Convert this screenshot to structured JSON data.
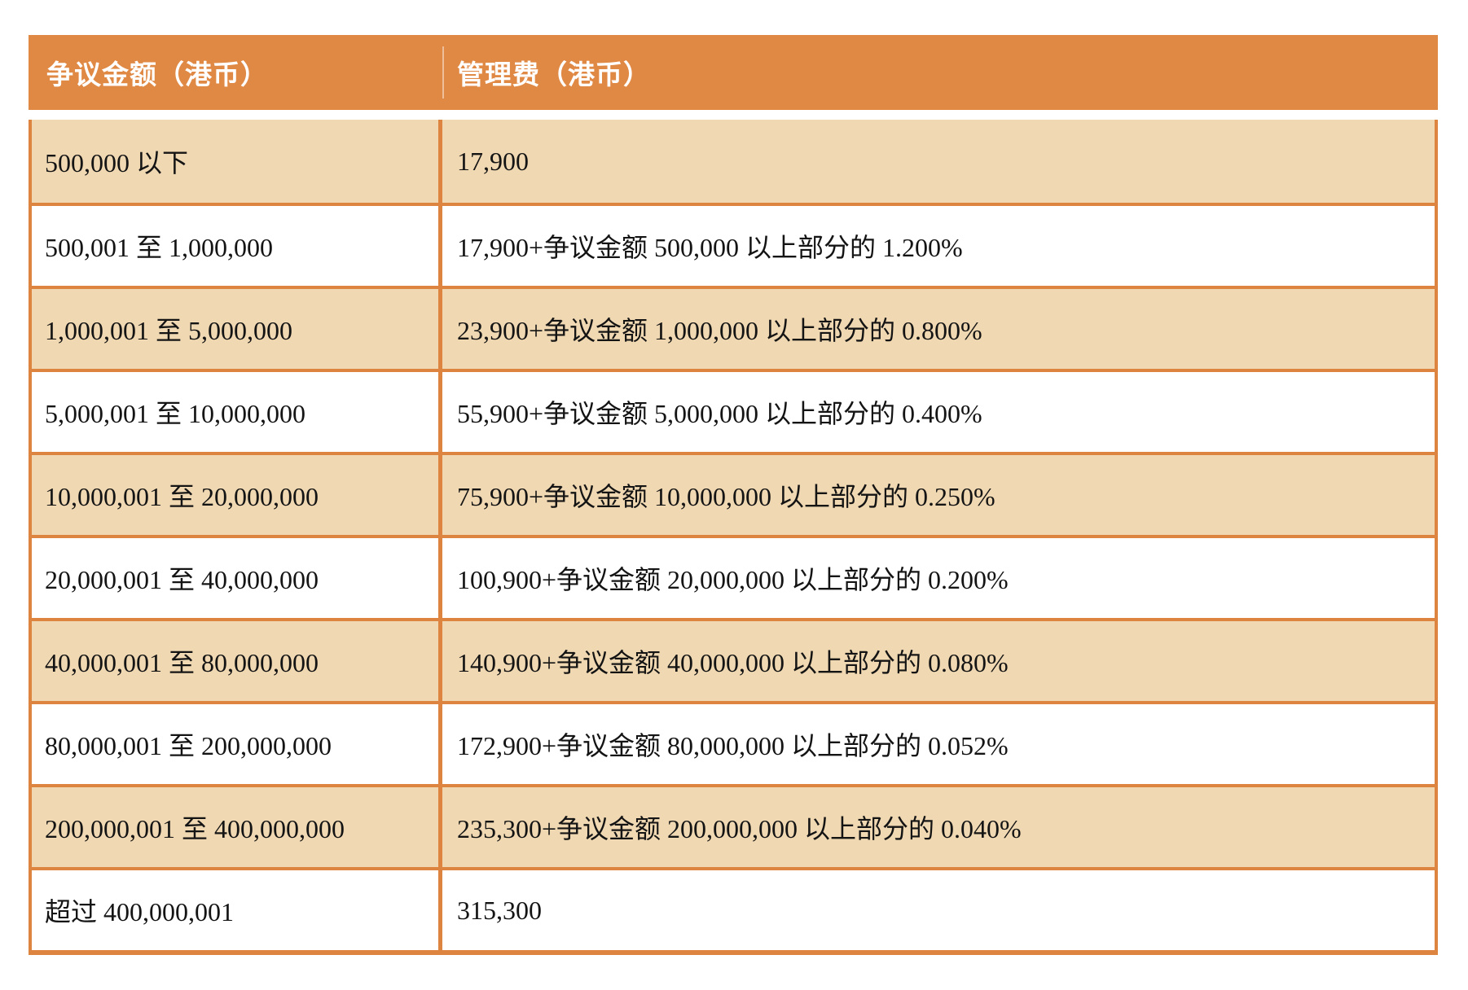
{
  "table": {
    "headers": {
      "amount": "争议金额（港币）",
      "fee": "管理费（港币）"
    },
    "rows": [
      {
        "amount": "500,000 以下",
        "fee": "17,900"
      },
      {
        "amount": "500,001 至 1,000,000",
        "fee": "17,900+争议金额 500,000 以上部分的 1.200%"
      },
      {
        "amount": "1,000,001 至 5,000,000",
        "fee": "23,900+争议金额 1,000,000 以上部分的 0.800%"
      },
      {
        "amount": "5,000,001 至 10,000,000",
        "fee": "55,900+争议金额 5,000,000 以上部分的 0.400%"
      },
      {
        "amount": "10,000,001 至 20,000,000",
        "fee": "75,900+争议金额 10,000,000 以上部分的 0.250%"
      },
      {
        "amount": "20,000,001 至 40,000,000",
        "fee": "100,900+争议金额 20,000,000 以上部分的 0.200%"
      },
      {
        "amount": "40,000,001 至 80,000,000",
        "fee": "140,900+争议金额 40,000,000 以上部分的 0.080%"
      },
      {
        "amount": "80,000,001 至 200,000,000",
        "fee": "172,900+争议金额 80,000,000 以上部分的 0.052%"
      },
      {
        "amount": "200,000,001 至 400,000,000",
        "fee": "235,300+争议金额 200,000,000 以上部分的 0.040%"
      },
      {
        "amount": "超过 400,000,001",
        "fee": "315,300"
      }
    ],
    "colors": {
      "header_bg": "#E08945",
      "border": "#DD8440",
      "row_alt_bg": "#F0D8B2",
      "row_plain_bg": "#FFFFFF",
      "header_text": "#FFFFFF",
      "body_text": "#141414"
    }
  },
  "chart_data": {
    "type": "table",
    "columns": [
      "争议金额（港币）",
      "管理费（港币）"
    ],
    "rows": [
      [
        "500,000 以下",
        "17,900"
      ],
      [
        "500,001 至 1,000,000",
        "17,900+争议金额 500,000 以上部分的 1.200%"
      ],
      [
        "1,000,001 至 5,000,000",
        "23,900+争议金额 1,000,000 以上部分的 0.800%"
      ],
      [
        "5,000,001 至 10,000,000",
        "55,900+争议金额 5,000,000 以上部分的 0.400%"
      ],
      [
        "10,000,001 至 20,000,000",
        "75,900+争议金额 10,000,000 以上部分的 0.250%"
      ],
      [
        "20,000,001 至 40,000,000",
        "100,900+争议金额 20,000,000 以上部分的 0.200%"
      ],
      [
        "40,000,001 至 80,000,000",
        "140,900+争议金额 40,000,000 以上部分的 0.080%"
      ],
      [
        "80,000,001 至 200,000,000",
        "172,900+争议金额 80,000,000 以上部分的 0.052%"
      ],
      [
        "200,000,001 至 400,000,000",
        "235,300+争议金额 200,000,000 以上部分的 0.040%"
      ],
      [
        "超过 400,000,001",
        "315,300"
      ]
    ]
  }
}
